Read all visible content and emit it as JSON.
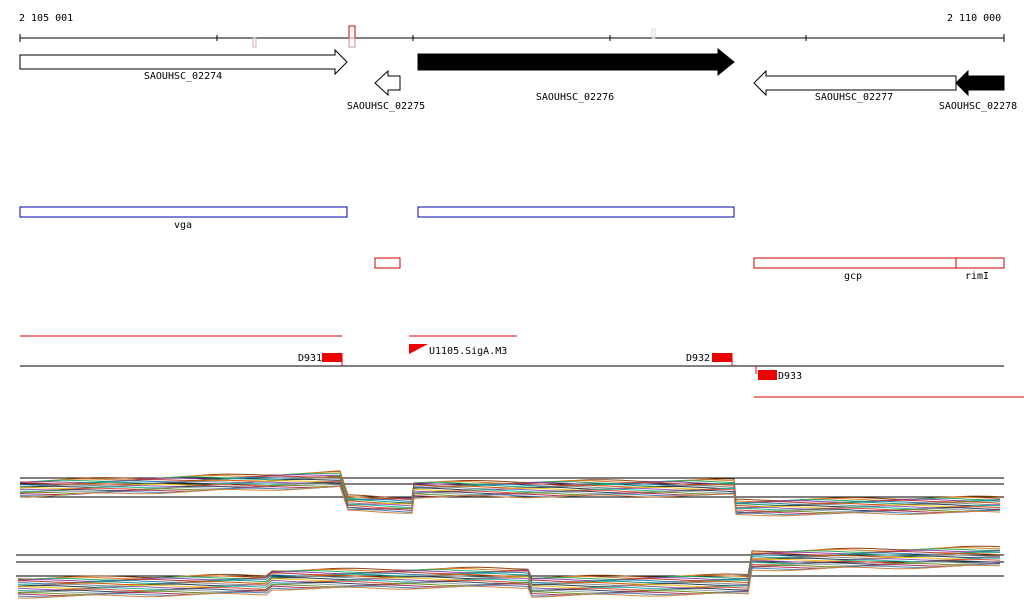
{
  "ruler": {
    "start_label": "2 105 001",
    "end_label": "2 110 000"
  },
  "genes": [
    {
      "label": "SAOUHSC_02274",
      "strand": "+",
      "style": "open"
    },
    {
      "label": "SAOUHSC_02275",
      "strand": "-",
      "style": "open"
    },
    {
      "label": "SAOUHSC_02276",
      "strand": "+",
      "style": "filled"
    },
    {
      "label": "SAOUHSC_02277",
      "strand": "-",
      "style": "open"
    },
    {
      "label": "SAOUHSC_02278",
      "strand": "-",
      "style": "filled"
    }
  ],
  "annotations_blue": [
    {
      "label": "vga"
    },
    {
      "label": ""
    }
  ],
  "annotations_red": [
    {
      "label": ""
    },
    {
      "label": "gcp"
    },
    {
      "label": "rimI"
    }
  ],
  "sites": [
    {
      "label": "D931"
    },
    {
      "label": "U1105.SigA.M3"
    },
    {
      "label": "D932"
    },
    {
      "label": "D933"
    }
  ],
  "colors": {
    "gene_fill": "#000000",
    "annotation_blue": "#0000aa",
    "annotation_red": "#cc0000",
    "site_red": "#ee0000"
  }
}
